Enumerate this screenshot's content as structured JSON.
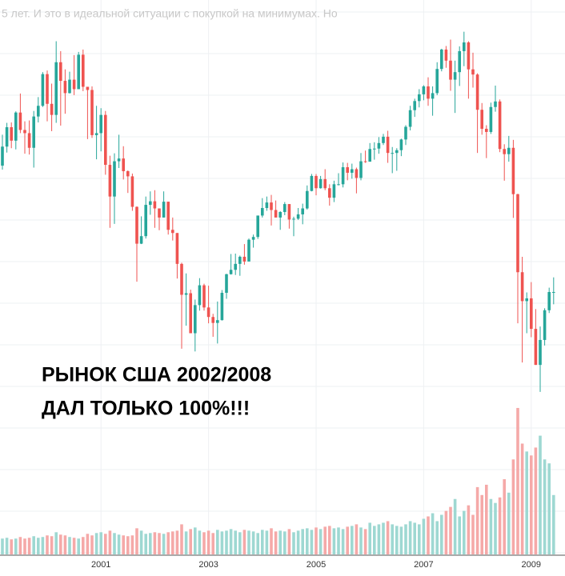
{
  "chart_data": {
    "type": "candlestick",
    "header_text": "5 лет. И это в идеальной ситуации с покупкой на минимумах. Но",
    "annotations": [
      "РЫНОК США 2002/2008",
      "ДАЛ ТОЛЬКО 100%!!!"
    ],
    "categories": [
      null,
      null,
      null,
      null,
      null,
      null,
      null,
      null,
      null,
      null,
      null,
      null,
      null,
      null,
      null,
      null,
      null,
      null,
      null,
      null,
      null,
      null,
      "2001",
      null,
      null,
      null,
      null,
      null,
      null,
      null,
      null,
      null,
      null,
      null,
      null,
      null,
      null,
      null,
      null,
      null,
      null,
      null,
      null,
      null,
      null,
      null,
      "2003",
      null,
      null,
      null,
      null,
      null,
      null,
      null,
      null,
      null,
      null,
      null,
      null,
      null,
      null,
      null,
      null,
      null,
      null,
      null,
      null,
      null,
      null,
      null,
      "2005",
      null,
      null,
      null,
      null,
      null,
      null,
      null,
      null,
      null,
      null,
      null,
      null,
      null,
      null,
      null,
      null,
      null,
      null,
      null,
      null,
      null,
      null,
      null,
      "2007",
      null,
      null,
      null,
      null,
      null,
      null,
      null,
      null,
      null,
      null,
      null,
      null,
      null,
      null,
      null,
      null,
      null,
      null,
      null,
      null,
      null,
      null,
      null,
      "2009",
      null,
      null,
      null,
      null,
      null
    ],
    "open": [
      1238,
      1286,
      1335,
      1301,
      1372,
      1328,
      1320,
      1283,
      1362,
      1389,
      1469,
      1394,
      1366,
      1499,
      1452,
      1421,
      1455,
      1431,
      1518,
      1437,
      1429,
      1315,
      1320,
      1366,
      1240,
      1160,
      1249,
      1256,
      1224,
      1211,
      1134,
      1041,
      1060,
      1139,
      1148,
      1130,
      1107,
      1147,
      1076,
      1068,
      990,
      912,
      916,
      815,
      886,
      936,
      880,
      856,
      841,
      848,
      917,
      964,
      975,
      990,
      1008,
      996,
      1051,
      1058,
      1112,
      1131,
      1145,
      1126,
      1107,
      1121,
      1141,
      1102,
      1104,
      1115,
      1130,
      1174,
      1212,
      1181,
      1204,
      1181,
      1157,
      1191,
      1191,
      1234,
      1220,
      1229,
      1207,
      1249,
      1248,
      1280,
      1281,
      1295,
      1311,
      1270,
      1270,
      1277,
      1304,
      1336,
      1378,
      1401,
      1418,
      1438,
      1407,
      1421,
      1482,
      1531,
      1503,
      1455,
      1474,
      1527,
      1549,
      1481,
      1468,
      1379,
      1331,
      1323,
      1386,
      1400,
      1280,
      1267,
      1283,
      1166,
      969,
      896,
      903,
      826,
      735,
      798,
      873,
      919
    ],
    "high": [
      1316,
      1346,
      1347,
      1375,
      1420,
      1350,
      1352,
      1376,
      1411,
      1474,
      1478,
      1445,
      1552,
      1527,
      1481,
      1475,
      1517,
      1525,
      1531,
      1437,
      1438,
      1389,
      1383,
      1376,
      1263,
      1269,
      1316,
      1287,
      1226,
      1218,
      1135,
      1110,
      1160,
      1173,
      1176,
      1130,
      1173,
      1147,
      1107,
      1068,
      993,
      966,
      925,
      900,
      954,
      940,
      935,
      864,
      895,
      924,
      965,
      1015,
      1016,
      1011,
      1040,
      1054,
      1064,
      1112,
      1156,
      1160,
      1164,
      1150,
      1123,
      1146,
      1141,
      1109,
      1131,
      1142,
      1188,
      1217,
      1217,
      1212,
      1229,
      1191,
      1200,
      1219,
      1246,
      1245,
      1243,
      1233,
      1270,
      1276,
      1295,
      1297,
      1310,
      1318,
      1326,
      1285,
      1282,
      1306,
      1340,
      1389,
      1407,
      1431,
      1441,
      1461,
      1438,
      1499,
      1533,
      1540,
      1556,
      1503,
      1539,
      1576,
      1552,
      1523,
      1471,
      1396,
      1340,
      1397,
      1440,
      1405,
      1292,
      1313,
      1303,
      1167,
      1008,
      918,
      944,
      876,
      832,
      878,
      930,
      956
    ],
    "low": [
      1228,
      1271,
      1282,
      1279,
      1320,
      1268,
      1266,
      1233,
      1347,
      1386,
      1350,
      1325,
      1346,
      1339,
      1369,
      1420,
      1416,
      1431,
      1426,
      1305,
      1308,
      1254,
      1274,
      1215,
      1081,
      1091,
      1232,
      1203,
      1169,
      1124,
      945,
      1040,
      1054,
      1114,
      1081,
      1075,
      1107,
      1064,
      1049,
      953,
      776,
      834,
      815,
      769,
      872,
      872,
      840,
      806,
      789,
      847,
      902,
      963,
      962,
      960,
      988,
      996,
      1031,
      1053,
      1107,
      1124,
      1087,
      1107,
      1076,
      1113,
      1079,
      1060,
      1101,
      1090,
      1127,
      1173,
      1163,
      1180,
      1176,
      1137,
      1146,
      1188,
      1183,
      1201,
      1205,
      1168,
      1201,
      1245,
      1253,
      1253,
      1268,
      1290,
      1245,
      1219,
      1225,
      1262,
      1290,
      1327,
      1361,
      1385,
      1403,
      1389,
      1364,
      1416,
      1476,
      1485,
      1427,
      1371,
      1439,
      1489,
      1407,
      1435,
      1270,
      1316,
      1257,
      1318,
      1374,
      1272,
      1200,
      1248,
      1106,
      840,
      741,
      815,
      805,
      735,
      667,
      784,
      866,
      888
    ],
    "close": [
      1286,
      1335,
      1301,
      1372,
      1328,
      1320,
      1283,
      1362,
      1389,
      1469,
      1394,
      1366,
      1499,
      1452,
      1421,
      1455,
      1431,
      1518,
      1437,
      1429,
      1315,
      1320,
      1366,
      1240,
      1160,
      1249,
      1256,
      1224,
      1211,
      1134,
      1041,
      1060,
      1139,
      1148,
      1130,
      1107,
      1147,
      1076,
      1068,
      990,
      912,
      916,
      815,
      886,
      936,
      880,
      856,
      841,
      848,
      917,
      964,
      975,
      990,
      1008,
      996,
      1051,
      1058,
      1112,
      1131,
      1145,
      1126,
      1107,
      1121,
      1141,
      1102,
      1104,
      1115,
      1130,
      1174,
      1212,
      1181,
      1204,
      1181,
      1157,
      1191,
      1191,
      1234,
      1220,
      1229,
      1207,
      1249,
      1248,
      1280,
      1281,
      1295,
      1311,
      1270,
      1270,
      1277,
      1304,
      1336,
      1378,
      1401,
      1418,
      1438,
      1407,
      1421,
      1482,
      1531,
      1503,
      1455,
      1474,
      1527,
      1549,
      1481,
      1468,
      1379,
      1331,
      1323,
      1386,
      1400,
      1280,
      1267,
      1283,
      1166,
      969,
      896,
      903,
      826,
      735,
      798,
      873,
      919,
      919
    ],
    "volume": [
      20,
      21,
      19,
      20,
      22,
      20,
      21,
      23,
      21,
      22,
      24,
      23,
      28,
      25,
      24,
      22,
      21,
      20,
      22,
      26,
      24,
      27,
      28,
      26,
      30,
      27,
      25,
      24,
      23,
      24,
      33,
      30,
      26,
      27,
      28,
      27,
      26,
      28,
      29,
      30,
      38,
      29,
      32,
      34,
      30,
      28,
      30,
      27,
      31,
      29,
      30,
      32,
      30,
      28,
      31,
      30,
      29,
      27,
      31,
      30,
      33,
      29,
      30,
      29,
      32,
      28,
      30,
      32,
      33,
      31,
      34,
      32,
      35,
      36,
      33,
      34,
      32,
      35,
      36,
      38,
      34,
      32,
      40,
      36,
      38,
      40,
      42,
      38,
      36,
      35,
      38,
      42,
      40,
      38,
      45,
      48,
      52,
      42,
      50,
      55,
      60,
      70,
      48,
      55,
      62,
      50,
      85,
      75,
      88,
      70,
      65,
      72,
      95,
      78,
      120,
      185,
      140,
      130,
      125,
      135,
      150,
      120,
      115,
      75
    ],
    "up_color": "#26a69a",
    "down_color": "#ef5350",
    "volume_up_color": "#9ed8d2",
    "volume_down_color": "#f5a9a8",
    "ylim": [
      600,
      1650
    ],
    "vlim": [
      0,
      190
    ],
    "grid": true
  }
}
